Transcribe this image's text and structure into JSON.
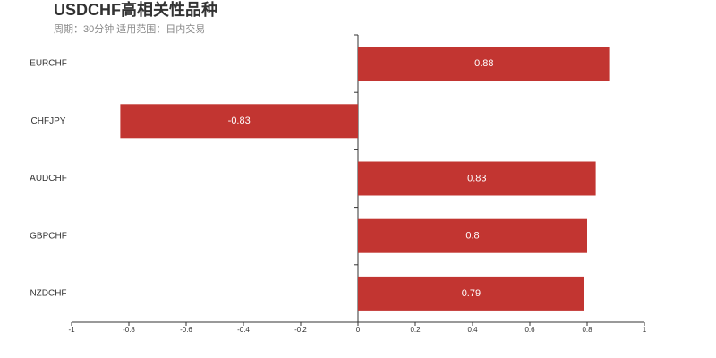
{
  "chart_data": {
    "type": "bar",
    "title": "USDCHF高相关性品种",
    "subtitle": "周期：30分钟 适用范围：日内交易",
    "categories": [
      "EURCHF",
      "CHFJPY",
      "AUDCHF",
      "GBPCHF",
      "NZDCHF"
    ],
    "values": [
      0.88,
      -0.83,
      0.83,
      0.8,
      0.79
    ],
    "color": "#c23531",
    "xlim": [
      -1,
      1
    ],
    "xticks": [
      -1,
      -0.8,
      -0.6,
      -0.4,
      -0.2,
      0,
      0.2,
      0.4,
      0.6,
      0.8,
      1
    ]
  }
}
